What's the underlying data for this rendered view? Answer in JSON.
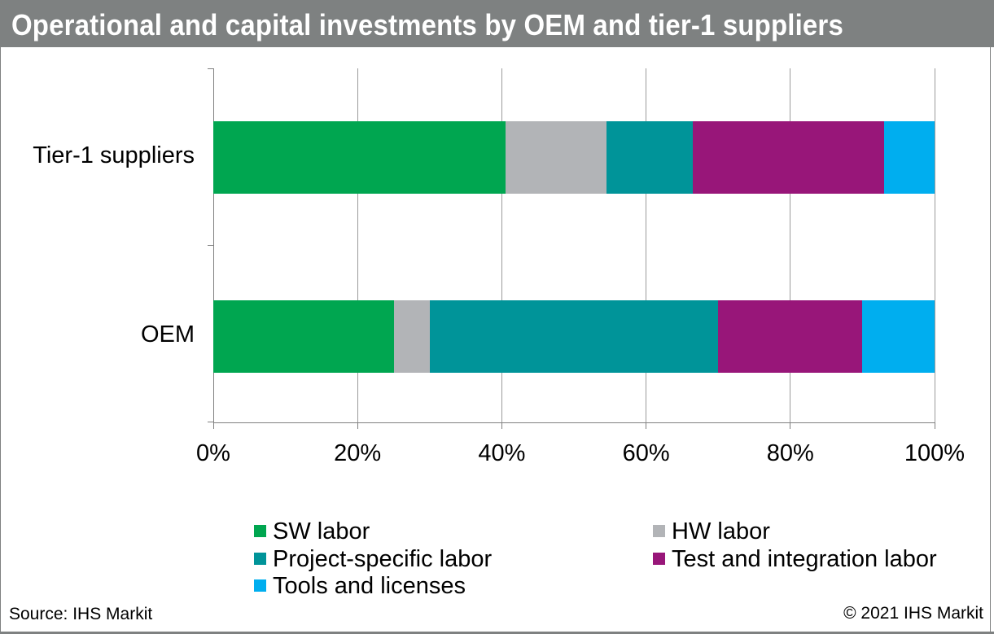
{
  "title": "Operational and capital investments by OEM and tier-1 suppliers",
  "footer": {
    "source": "Source: IHS Markit",
    "copyright": "© 2021 IHS Markit"
  },
  "colors": {
    "title_bar": "#7e8181",
    "frame_border": "#7e8181",
    "axis": "#808080",
    "gridline": "#9b9b9b",
    "sw_labor": "#00a650",
    "hw_labor": "#b2b4b7",
    "project_specific_labor": "#009499",
    "test_and_integration_labor": "#981679",
    "tools_and_licenses": "#00aeef"
  },
  "chart_data": {
    "type": "bar",
    "orientation": "horizontal",
    "stacked": true,
    "categories": [
      "Tier-1 suppliers",
      "OEM"
    ],
    "series": [
      {
        "name": "SW labor",
        "color_key": "sw_labor",
        "values": [
          40.5,
          25
        ]
      },
      {
        "name": "HW labor",
        "color_key": "hw_labor",
        "values": [
          14,
          5
        ]
      },
      {
        "name": "Project-specific labor",
        "color_key": "project_specific_labor",
        "values": [
          12,
          40
        ]
      },
      {
        "name": "Test and integration labor",
        "color_key": "test_and_integration_labor",
        "values": [
          26.5,
          20
        ]
      },
      {
        "name": "Tools and licenses",
        "color_key": "tools_and_licenses",
        "values": [
          7,
          10
        ]
      }
    ],
    "x_ticks": [
      "0%",
      "20%",
      "40%",
      "60%",
      "80%",
      "100%"
    ],
    "xlim": [
      0,
      100
    ],
    "grid": true,
    "legend_position": "bottom"
  }
}
